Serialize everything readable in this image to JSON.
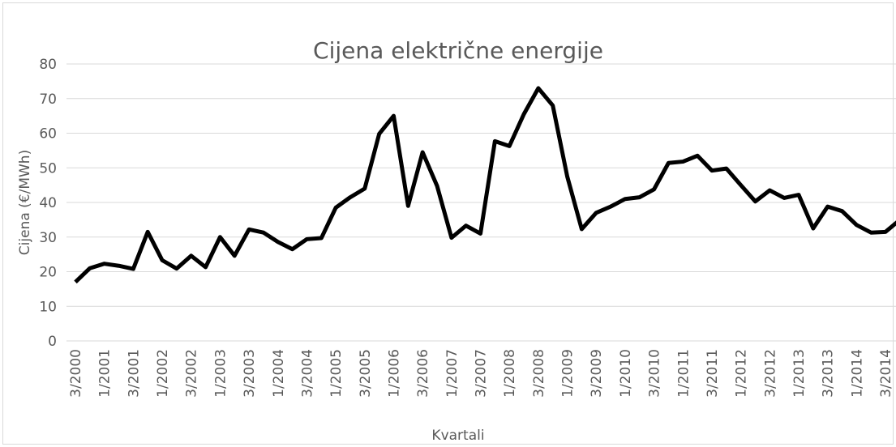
{
  "chart_data": {
    "type": "line",
    "title": "Cijena električne energije",
    "x_label": "Kvartali",
    "y_label": "Cijena (€/MWh)",
    "categories": [
      "3/2000",
      null,
      "1/2001",
      null,
      "3/2001",
      null,
      "1/2002",
      null,
      "3/2002",
      null,
      "1/2003",
      null,
      "3/2003",
      null,
      "1/2004",
      null,
      "3/2004",
      null,
      "1/2005",
      null,
      "3/2005",
      null,
      "1/2006",
      null,
      "3/2006",
      null,
      "1/2007",
      null,
      "3/2007",
      null,
      "1/2008",
      null,
      "3/2008",
      null,
      "1/2009",
      null,
      "3/2009",
      null,
      "1/2010",
      null,
      "3/2010",
      null,
      "1/2011",
      null,
      "3/2011",
      null,
      "1/2012",
      null,
      "3/2012",
      null,
      "1/2013",
      null,
      "3/2013",
      null,
      "1/2014",
      null,
      "3/2014",
      null
    ],
    "series": [
      {
        "name": "Cijena",
        "color": "#000000",
        "values": [
          17,
          21,
          22.3,
          21.7,
          20.8,
          31.5,
          23.3,
          20.9,
          24.6,
          21.3,
          30,
          24.6,
          32.2,
          31.3,
          28.6,
          26.5,
          29.4,
          29.7,
          38.5,
          41.5,
          44,
          59.8,
          65,
          39,
          54.5,
          44.8,
          29.8,
          33.3,
          31,
          57.7,
          56.3,
          65.5,
          73,
          68,
          47.5,
          32.3,
          37,
          38.8,
          41,
          41.5,
          43.8,
          51.4,
          51.8,
          53.5,
          49.2,
          49.8,
          45,
          40.3,
          43.5,
          41.3,
          42.2,
          32.5,
          38.8,
          37.5,
          33.5,
          31.3,
          31.5,
          35
        ]
      }
    ],
    "ylim": [
      0,
      80
    ],
    "yticks": [
      0,
      10,
      20,
      30,
      40,
      50,
      60,
      70,
      80
    ],
    "grid": true
  }
}
